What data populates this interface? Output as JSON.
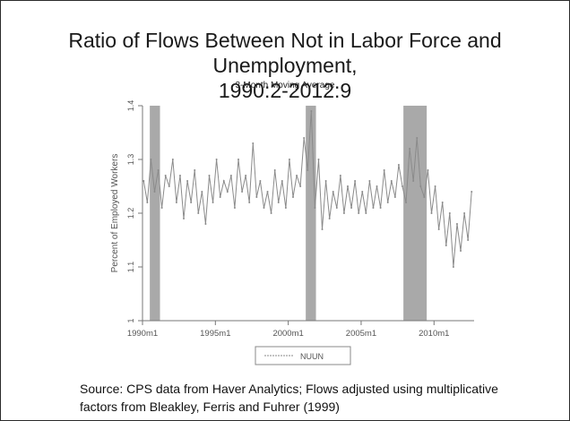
{
  "slide": {
    "title_line1": "Ratio of Flows Between Not in Labor Force and Unemployment,",
    "title_line2": "1990:2-2012:9",
    "subtitle": "3-Month Moving Average",
    "source_line1": "Source: CPS data from Haver Analytics; Flows adjusted using multiplicative",
    "source_line2": "factors from Bleakley, Ferris and Fuhrer (1999)"
  },
  "chart_data": {
    "type": "line",
    "title": "Ratio of Flows Between Not in Labor Force and Unemployment, 1990:2-2012:9",
    "subtitle": "3-Month Moving Average",
    "xlabel": "",
    "ylabel": "Percent of Employed Workers",
    "xlim": [
      1990.0,
      2012.75
    ],
    "ylim": [
      1.0,
      1.4
    ],
    "x_ticks": [
      {
        "value": 1990,
        "label": "1990m1"
      },
      {
        "value": 1995,
        "label": "1995m1"
      },
      {
        "value": 2000,
        "label": "2000m1"
      },
      {
        "value": 2005,
        "label": "2005m1"
      },
      {
        "value": 2010,
        "label": "2010m1"
      }
    ],
    "y_ticks": [
      {
        "value": 1.0,
        "label": "1"
      },
      {
        "value": 1.1,
        "label": "1.1"
      },
      {
        "value": 1.2,
        "label": "1.2"
      },
      {
        "value": 1.3,
        "label": "1.3"
      },
      {
        "value": 1.4,
        "label": "1.4"
      }
    ],
    "recessions": [
      {
        "start": 1990.5,
        "end": 1991.2
      },
      {
        "start": 2001.2,
        "end": 2001.9
      },
      {
        "start": 2007.9,
        "end": 2009.5
      }
    ],
    "grid": false,
    "legend": {
      "placement": "bottom-center",
      "entries": [
        "NUUN"
      ]
    },
    "series": [
      {
        "name": "NUUN",
        "color": "#8a8a8a",
        "x": [
          1990.08,
          1990.33,
          1990.58,
          1990.83,
          1991.08,
          1991.33,
          1991.58,
          1991.83,
          1992.08,
          1992.33,
          1992.58,
          1992.83,
          1993.08,
          1993.33,
          1993.58,
          1993.83,
          1994.08,
          1994.33,
          1994.58,
          1994.83,
          1995.08,
          1995.33,
          1995.58,
          1995.83,
          1996.08,
          1996.33,
          1996.58,
          1996.83,
          1997.08,
          1997.33,
          1997.58,
          1997.83,
          1998.08,
          1998.33,
          1998.58,
          1998.83,
          1999.08,
          1999.33,
          1999.58,
          1999.83,
          2000.08,
          2000.33,
          2000.58,
          2000.83,
          2001.08,
          2001.33,
          2001.58,
          2001.83,
          2002.08,
          2002.33,
          2002.58,
          2002.83,
          2003.08,
          2003.33,
          2003.58,
          2003.83,
          2004.08,
          2004.33,
          2004.58,
          2004.83,
          2005.08,
          2005.33,
          2005.58,
          2005.83,
          2006.08,
          2006.33,
          2006.58,
          2006.83,
          2007.08,
          2007.33,
          2007.58,
          2007.83,
          2008.08,
          2008.33,
          2008.58,
          2008.83,
          2009.08,
          2009.33,
          2009.58,
          2009.83,
          2010.08,
          2010.33,
          2010.58,
          2010.83,
          2011.08,
          2011.33,
          2011.58,
          2011.83,
          2012.08,
          2012.33,
          2012.58
        ],
        "values": [
          1.26,
          1.22,
          1.3,
          1.24,
          1.28,
          1.21,
          1.27,
          1.25,
          1.3,
          1.22,
          1.27,
          1.19,
          1.26,
          1.22,
          1.28,
          1.2,
          1.24,
          1.18,
          1.27,
          1.22,
          1.3,
          1.23,
          1.26,
          1.24,
          1.27,
          1.21,
          1.3,
          1.24,
          1.27,
          1.22,
          1.33,
          1.23,
          1.26,
          1.21,
          1.24,
          1.2,
          1.28,
          1.22,
          1.26,
          1.21,
          1.3,
          1.23,
          1.27,
          1.25,
          1.34,
          1.28,
          1.39,
          1.21,
          1.3,
          1.17,
          1.26,
          1.19,
          1.24,
          1.21,
          1.27,
          1.2,
          1.25,
          1.21,
          1.26,
          1.2,
          1.24,
          1.2,
          1.26,
          1.21,
          1.25,
          1.21,
          1.28,
          1.22,
          1.26,
          1.23,
          1.29,
          1.25,
          1.22,
          1.32,
          1.26,
          1.34,
          1.25,
          1.23,
          1.28,
          1.2,
          1.25,
          1.17,
          1.22,
          1.14,
          1.2,
          1.1,
          1.18,
          1.13,
          1.2,
          1.15,
          1.24
        ]
      }
    ]
  }
}
